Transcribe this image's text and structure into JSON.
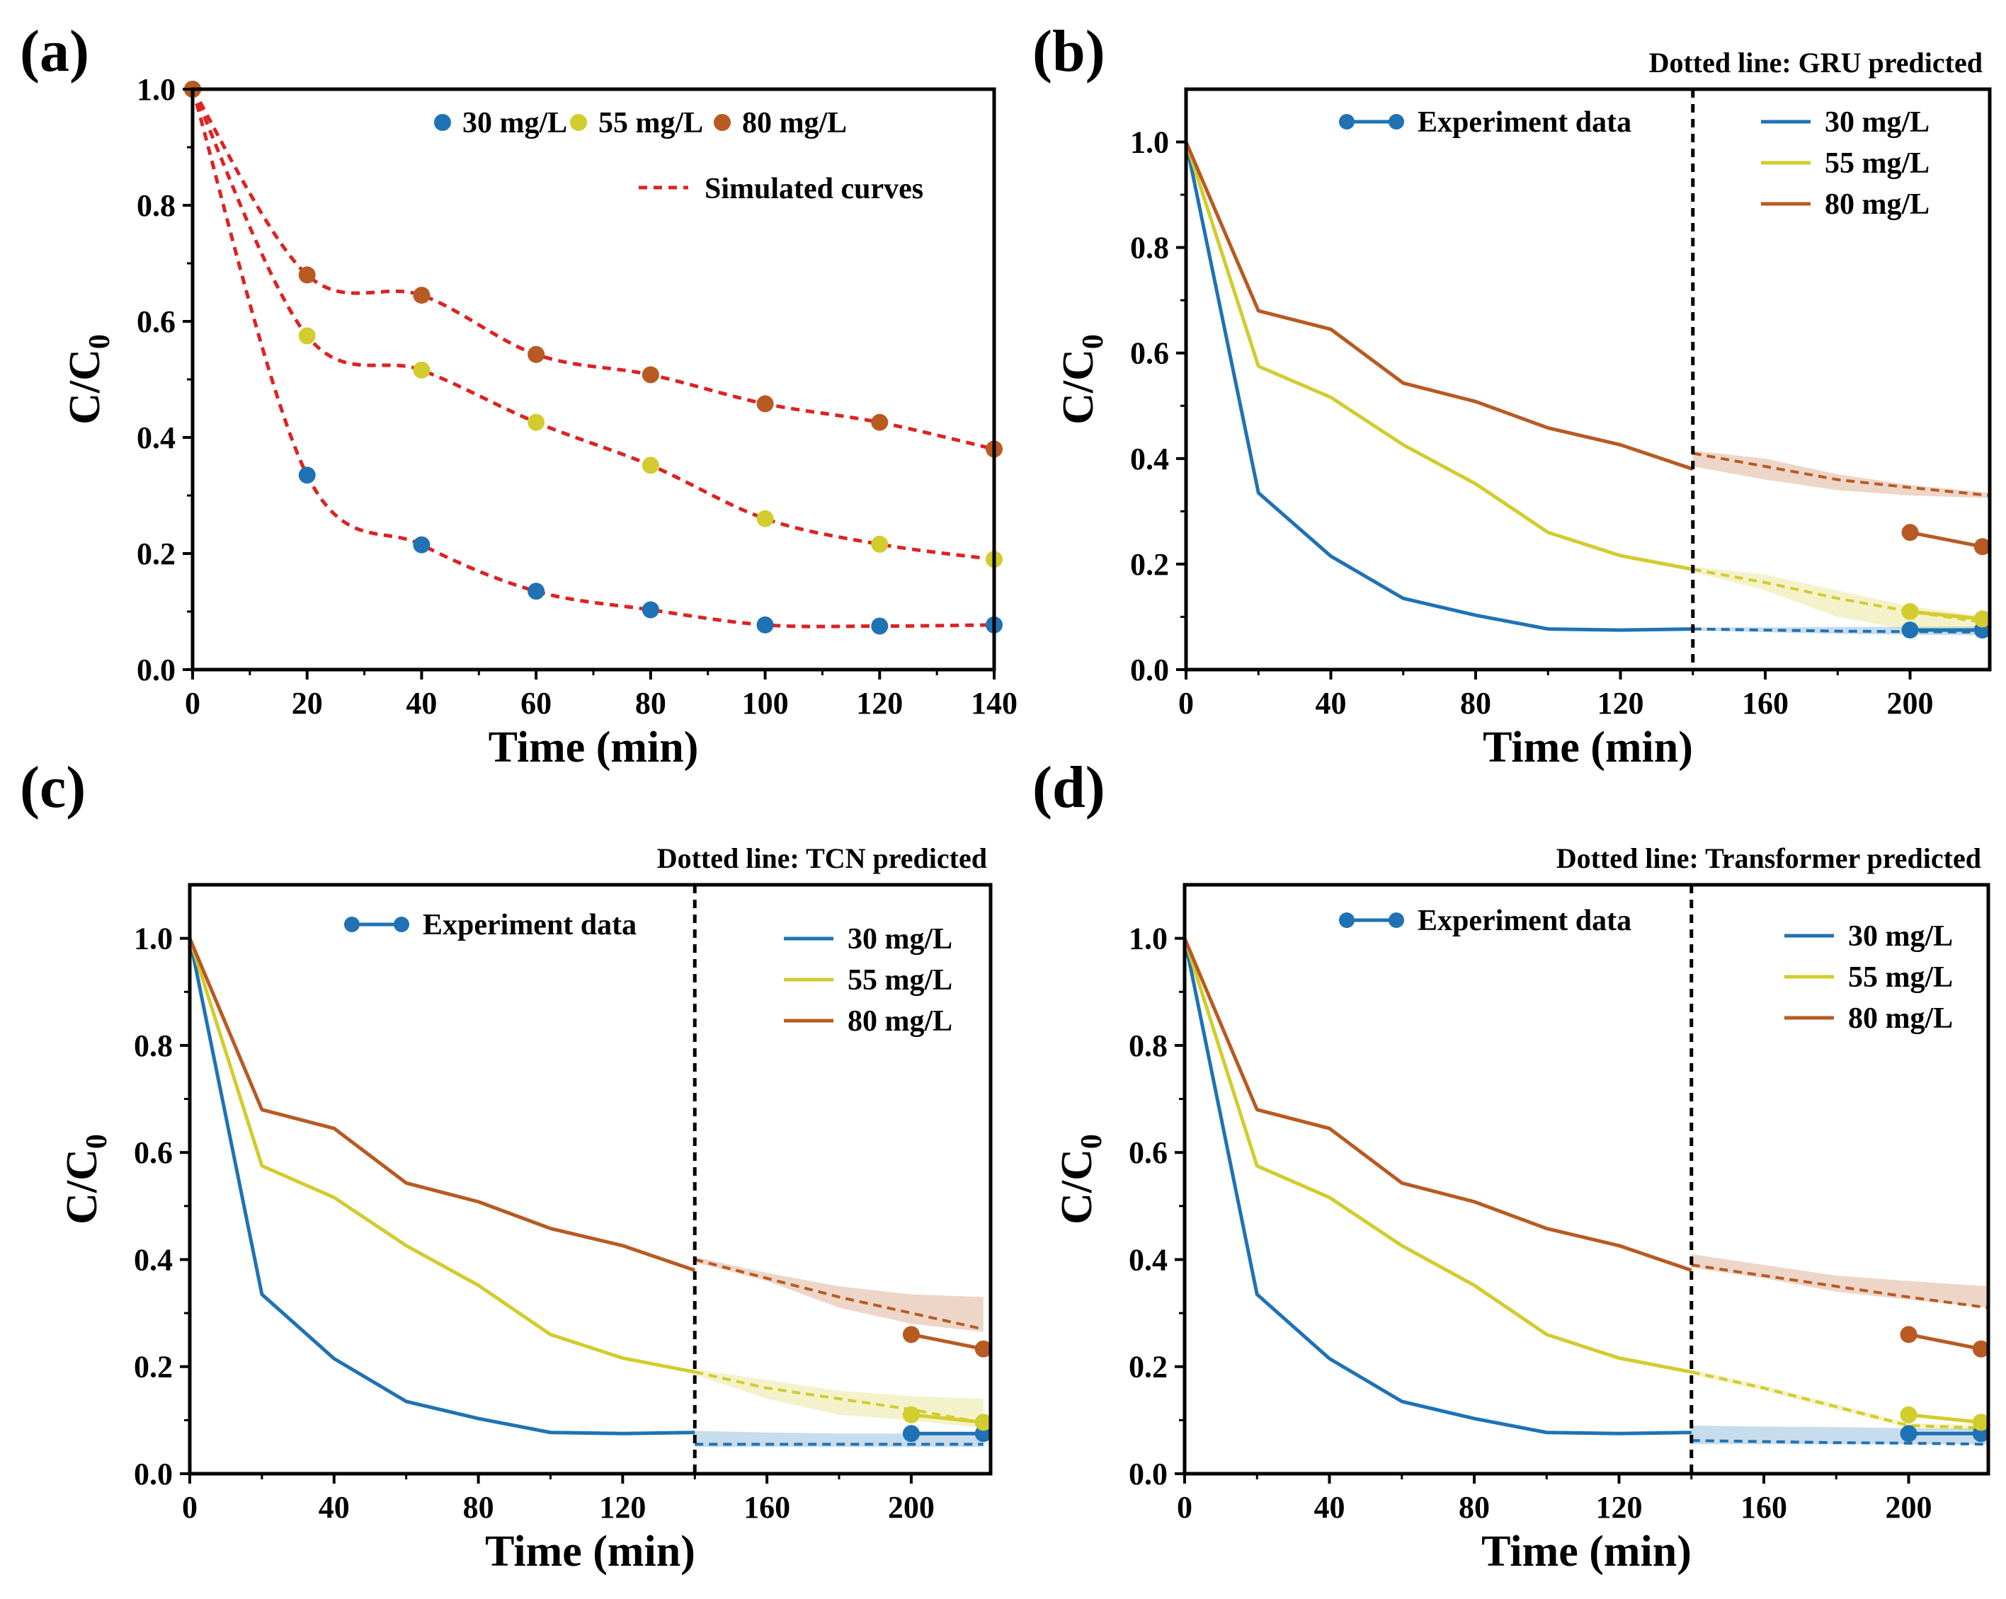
{
  "colors": {
    "c30": "#1f72b4",
    "c55": "#d2cc2e",
    "c80": "#b85a22",
    "simulated": "#dd2222",
    "axis": "#000000"
  },
  "chart_data": [
    {
      "id": "a",
      "panel_label": "(a)",
      "type": "scatter+line",
      "xlabel": "Time (min)",
      "ylabel": "C/C",
      "ylabel_sub": "0",
      "xlim": [
        0,
        140
      ],
      "ylim": [
        0,
        1.0
      ],
      "xticks": [
        0,
        20,
        40,
        60,
        80,
        100,
        120,
        140
      ],
      "yticks": [
        0.0,
        0.2,
        0.4,
        0.6,
        0.8,
        1.0
      ],
      "ytick_labels": [
        "0.0",
        "0.2",
        "0.4",
        "0.6",
        "0.8",
        "1.0"
      ],
      "legend": {
        "markers": [
          "30 mg/L",
          "55 mg/L",
          "80 mg/L"
        ],
        "line": "Simulated curves",
        "placement": "top-right"
      },
      "x": [
        0,
        20,
        40,
        60,
        80,
        100,
        120,
        140
      ],
      "series": [
        {
          "name": "30 mg/L",
          "color_key": "c30",
          "values": [
            1.0,
            0.335,
            0.215,
            0.135,
            0.103,
            0.077,
            0.075,
            0.077
          ]
        },
        {
          "name": "55 mg/L",
          "color_key": "c55",
          "values": [
            1.0,
            0.575,
            0.516,
            0.426,
            0.352,
            0.26,
            0.216,
            0.19
          ]
        },
        {
          "name": "80 mg/L",
          "color_key": "c80",
          "values": [
            1.0,
            0.68,
            0.645,
            0.543,
            0.508,
            0.458,
            0.426,
            0.38
          ]
        }
      ]
    },
    {
      "id": "b",
      "panel_label": "(b)",
      "type": "line",
      "note": "Dotted line: GRU predicted",
      "xlabel": "Time (min)",
      "ylabel": "C/C",
      "ylabel_sub": "0",
      "xlim": [
        0,
        222
      ],
      "ylim": [
        0,
        1.1
      ],
      "xticks": [
        0,
        40,
        80,
        120,
        160,
        200
      ],
      "yticks": [
        0.0,
        0.2,
        0.4,
        0.6,
        0.8,
        1.0
      ],
      "ytick_labels": [
        "0.0",
        "0.2",
        "0.4",
        "0.6",
        "0.8",
        "1.0"
      ],
      "split_x": 140,
      "legend": {
        "experiment": "Experiment data",
        "series": [
          "30 mg/L",
          "55 mg/L",
          "80 mg/L"
        ],
        "placement": "top-right"
      },
      "x_experiment": [
        0,
        20,
        40,
        60,
        80,
        100,
        120,
        140
      ],
      "x_predicted": [
        140,
        160,
        180,
        200,
        222
      ],
      "x_test": [
        200,
        220
      ],
      "series": [
        {
          "name": "30 mg/L",
          "color_key": "c30",
          "values": [
            1.0,
            0.335,
            0.215,
            0.135,
            0.103,
            0.077,
            0.075,
            0.077
          ],
          "predicted": [
            0.077,
            0.075,
            0.073,
            0.072,
            0.071
          ],
          "band_low": [
            0.074,
            0.071,
            0.068,
            0.066,
            0.065
          ],
          "band_high": [
            0.08,
            0.08,
            0.081,
            0.081,
            0.082
          ],
          "test": [
            0.075,
            0.075
          ]
        },
        {
          "name": "55 mg/L",
          "color_key": "c55",
          "values": [
            1.0,
            0.575,
            0.516,
            0.426,
            0.352,
            0.26,
            0.216,
            0.19
          ],
          "predicted": [
            0.19,
            0.165,
            0.135,
            0.11,
            0.088
          ],
          "band_low": [
            0.185,
            0.15,
            0.1,
            0.075,
            0.075
          ],
          "band_high": [
            0.195,
            0.18,
            0.15,
            0.12,
            0.1
          ],
          "test": [
            0.11,
            0.096
          ]
        },
        {
          "name": "80 mg/L",
          "color_key": "c80",
          "values": [
            1.0,
            0.68,
            0.645,
            0.543,
            0.508,
            0.458,
            0.426,
            0.38
          ],
          "predicted": [
            0.41,
            0.385,
            0.36,
            0.345,
            0.33
          ],
          "band_low": [
            0.385,
            0.36,
            0.34,
            0.33,
            0.325
          ],
          "band_high": [
            0.415,
            0.4,
            0.37,
            0.35,
            0.335
          ],
          "test": [
            0.26,
            0.233
          ]
        }
      ]
    },
    {
      "id": "c",
      "panel_label": "(c)",
      "type": "line",
      "note": "Dotted line: TCN predicted",
      "xlabel": "Time (min)",
      "ylabel": "C/C",
      "ylabel_sub": "0",
      "xlim": [
        0,
        222
      ],
      "ylim": [
        0,
        1.1
      ],
      "xticks": [
        0,
        40,
        80,
        120,
        160,
        200
      ],
      "yticks": [
        0.0,
        0.2,
        0.4,
        0.6,
        0.8,
        1.0
      ],
      "ytick_labels": [
        "0.0",
        "0.2",
        "0.4",
        "0.6",
        "0.8",
        "1.0"
      ],
      "split_x": 140,
      "legend": {
        "experiment": "Experiment data",
        "series": [
          "30 mg/L",
          "55 mg/L",
          "80 mg/L"
        ],
        "placement": "top-right"
      },
      "x_experiment": [
        0,
        20,
        40,
        60,
        80,
        100,
        120,
        140
      ],
      "x_predicted": [
        140,
        160,
        180,
        200,
        220
      ],
      "x_test": [
        200,
        220
      ],
      "series": [
        {
          "name": "30 mg/L",
          "color_key": "c30",
          "values": [
            1.0,
            0.335,
            0.215,
            0.135,
            0.103,
            0.077,
            0.075,
            0.077
          ],
          "predicted": [
            0.055,
            0.055,
            0.055,
            0.055,
            0.055
          ],
          "band_low": [
            0.05,
            0.05,
            0.05,
            0.05,
            0.05
          ],
          "band_high": [
            0.08,
            0.077,
            0.075,
            0.075,
            0.075
          ],
          "test": [
            0.075,
            0.075
          ]
        },
        {
          "name": "55 mg/L",
          "color_key": "c55",
          "values": [
            1.0,
            0.575,
            0.516,
            0.426,
            0.352,
            0.26,
            0.216,
            0.19
          ],
          "predicted": [
            0.19,
            0.16,
            0.14,
            0.12,
            0.095
          ],
          "band_low": [
            0.185,
            0.14,
            0.11,
            0.1,
            0.085
          ],
          "band_high": [
            0.195,
            0.175,
            0.155,
            0.145,
            0.14
          ],
          "test": [
            0.11,
            0.096
          ]
        },
        {
          "name": "80 mg/L",
          "color_key": "c80",
          "values": [
            1.0,
            0.68,
            0.645,
            0.543,
            0.508,
            0.458,
            0.426,
            0.38
          ],
          "predicted": [
            0.4,
            0.365,
            0.33,
            0.3,
            0.27
          ],
          "band_low": [
            0.395,
            0.36,
            0.31,
            0.28,
            0.265
          ],
          "band_high": [
            0.405,
            0.375,
            0.35,
            0.335,
            0.33
          ],
          "test": [
            0.26,
            0.233
          ]
        }
      ]
    },
    {
      "id": "d",
      "panel_label": "(d)",
      "type": "line",
      "note": "Dotted line: Transformer predicted",
      "xlabel": "Time (min)",
      "ylabel": "C/C",
      "ylabel_sub": "0",
      "xlim": [
        0,
        222
      ],
      "ylim": [
        0,
        1.1
      ],
      "xticks": [
        0,
        40,
        80,
        120,
        160,
        200
      ],
      "yticks": [
        0.0,
        0.2,
        0.4,
        0.6,
        0.8,
        1.0
      ],
      "ytick_labels": [
        "0.0",
        "0.2",
        "0.4",
        "0.6",
        "0.8",
        "1.0"
      ],
      "split_x": 140,
      "legend": {
        "experiment": "Experiment data",
        "series": [
          "30 mg/L",
          "55 mg/L",
          "80 mg/L"
        ],
        "placement": "top-right"
      },
      "x_experiment": [
        0,
        20,
        40,
        60,
        80,
        100,
        120,
        140
      ],
      "x_predicted": [
        140,
        160,
        180,
        200,
        222
      ],
      "x_test": [
        200,
        220
      ],
      "series": [
        {
          "name": "30 mg/L",
          "color_key": "c30",
          "values": [
            1.0,
            0.335,
            0.215,
            0.135,
            0.103,
            0.077,
            0.075,
            0.077
          ],
          "predicted": [
            0.062,
            0.06,
            0.058,
            0.057,
            0.055
          ],
          "band_low": [
            0.055,
            0.055,
            0.055,
            0.055,
            0.055
          ],
          "band_high": [
            0.09,
            0.088,
            0.087,
            0.085,
            0.084
          ],
          "test": [
            0.075,
            0.075
          ]
        },
        {
          "name": "55 mg/L",
          "color_key": "c55",
          "values": [
            1.0,
            0.575,
            0.516,
            0.426,
            0.352,
            0.26,
            0.216,
            0.19
          ],
          "predicted": [
            0.19,
            0.16,
            0.125,
            0.09,
            0.085
          ],
          "band_low": [
            0.185,
            0.155,
            0.12,
            0.085,
            0.08
          ],
          "band_high": [
            0.195,
            0.165,
            0.13,
            0.095,
            0.09
          ],
          "test": [
            0.11,
            0.096
          ]
        },
        {
          "name": "80 mg/L",
          "color_key": "c80",
          "values": [
            1.0,
            0.68,
            0.645,
            0.543,
            0.508,
            0.458,
            0.426,
            0.38
          ],
          "predicted": [
            0.39,
            0.37,
            0.35,
            0.33,
            0.31
          ],
          "band_low": [
            0.385,
            0.365,
            0.34,
            0.325,
            0.31
          ],
          "band_high": [
            0.41,
            0.39,
            0.37,
            0.36,
            0.35
          ],
          "test": [
            0.26,
            0.233
          ]
        }
      ]
    }
  ]
}
